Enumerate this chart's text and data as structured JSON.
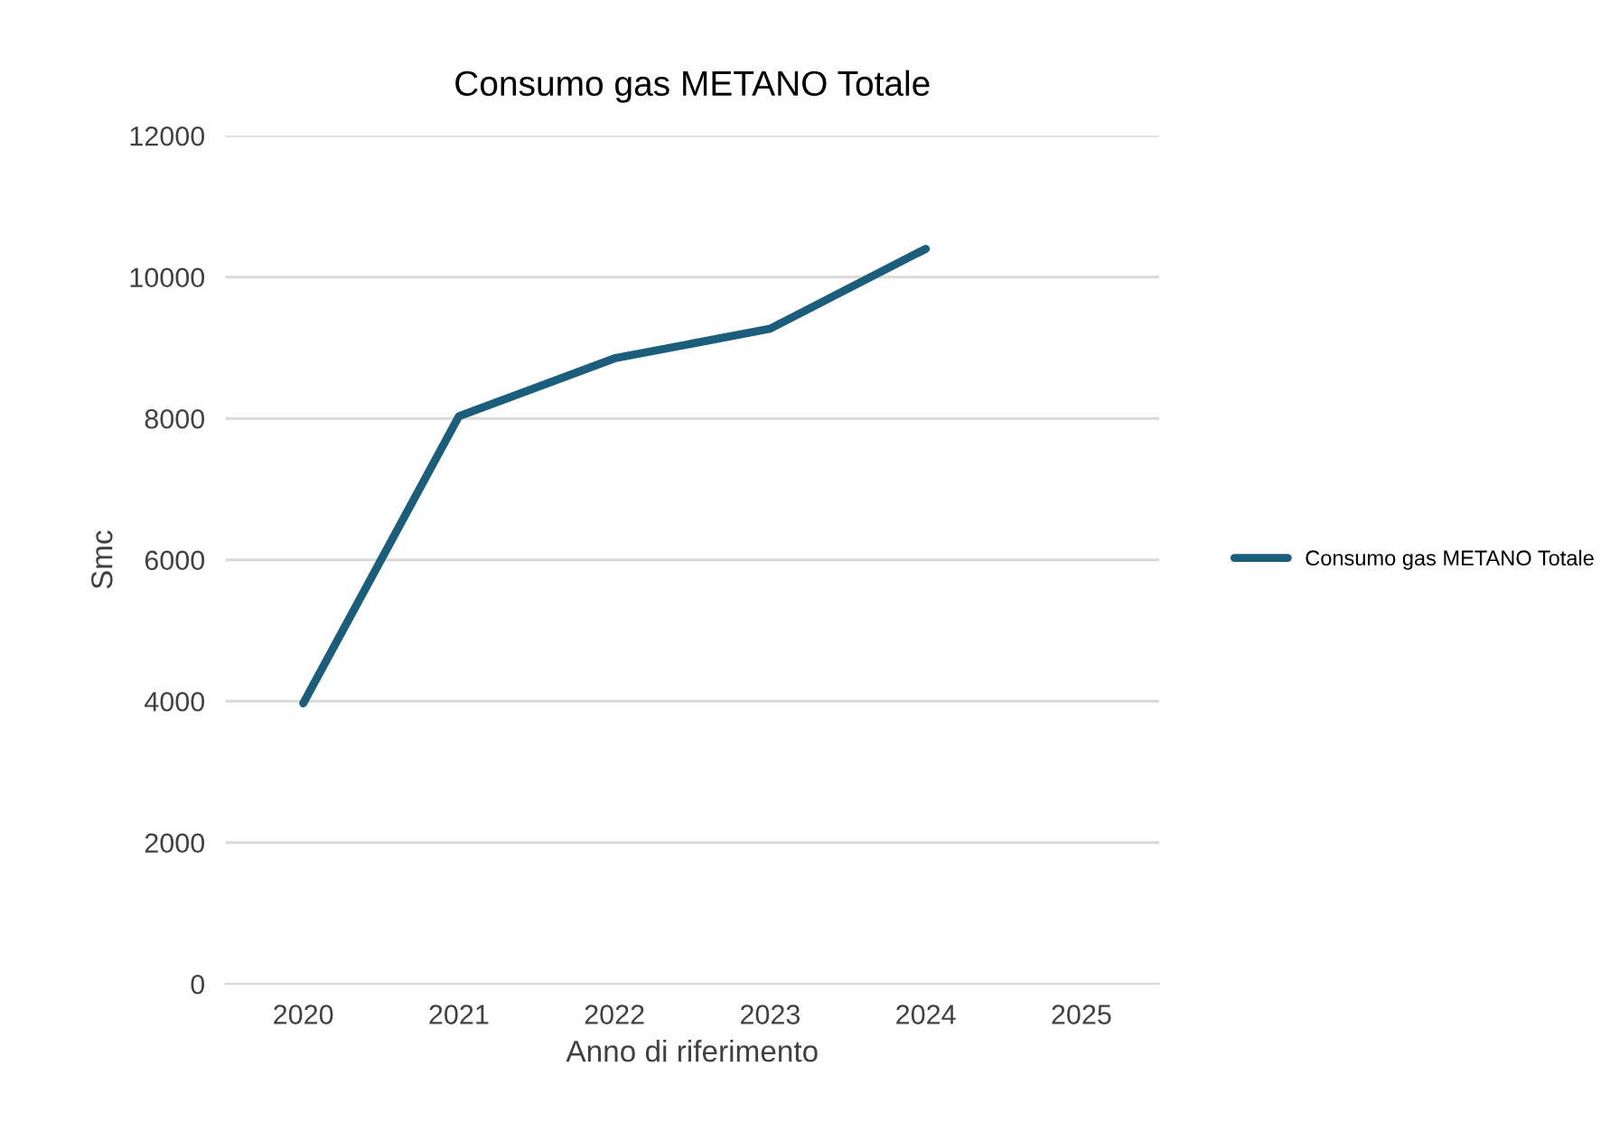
{
  "chart_data": {
    "type": "line",
    "title": "Consumo gas METANO Totale",
    "xlabel": "Anno di riferimento",
    "ylabel": "Smc",
    "categories": [
      "2020",
      "2021",
      "2022",
      "2023",
      "2024",
      "2025"
    ],
    "series": [
      {
        "name": "Consumo gas METANO Totale",
        "color": "#1b5e7b",
        "values": [
          3970,
          8030,
          8850,
          9270,
          10400,
          null
        ]
      }
    ],
    "ylim": [
      0,
      12000
    ],
    "yticks": [
      0,
      2000,
      4000,
      6000,
      8000,
      10000,
      12000
    ],
    "grid": "y",
    "legend": "right",
    "marker": "none",
    "line_style": "solid"
  }
}
